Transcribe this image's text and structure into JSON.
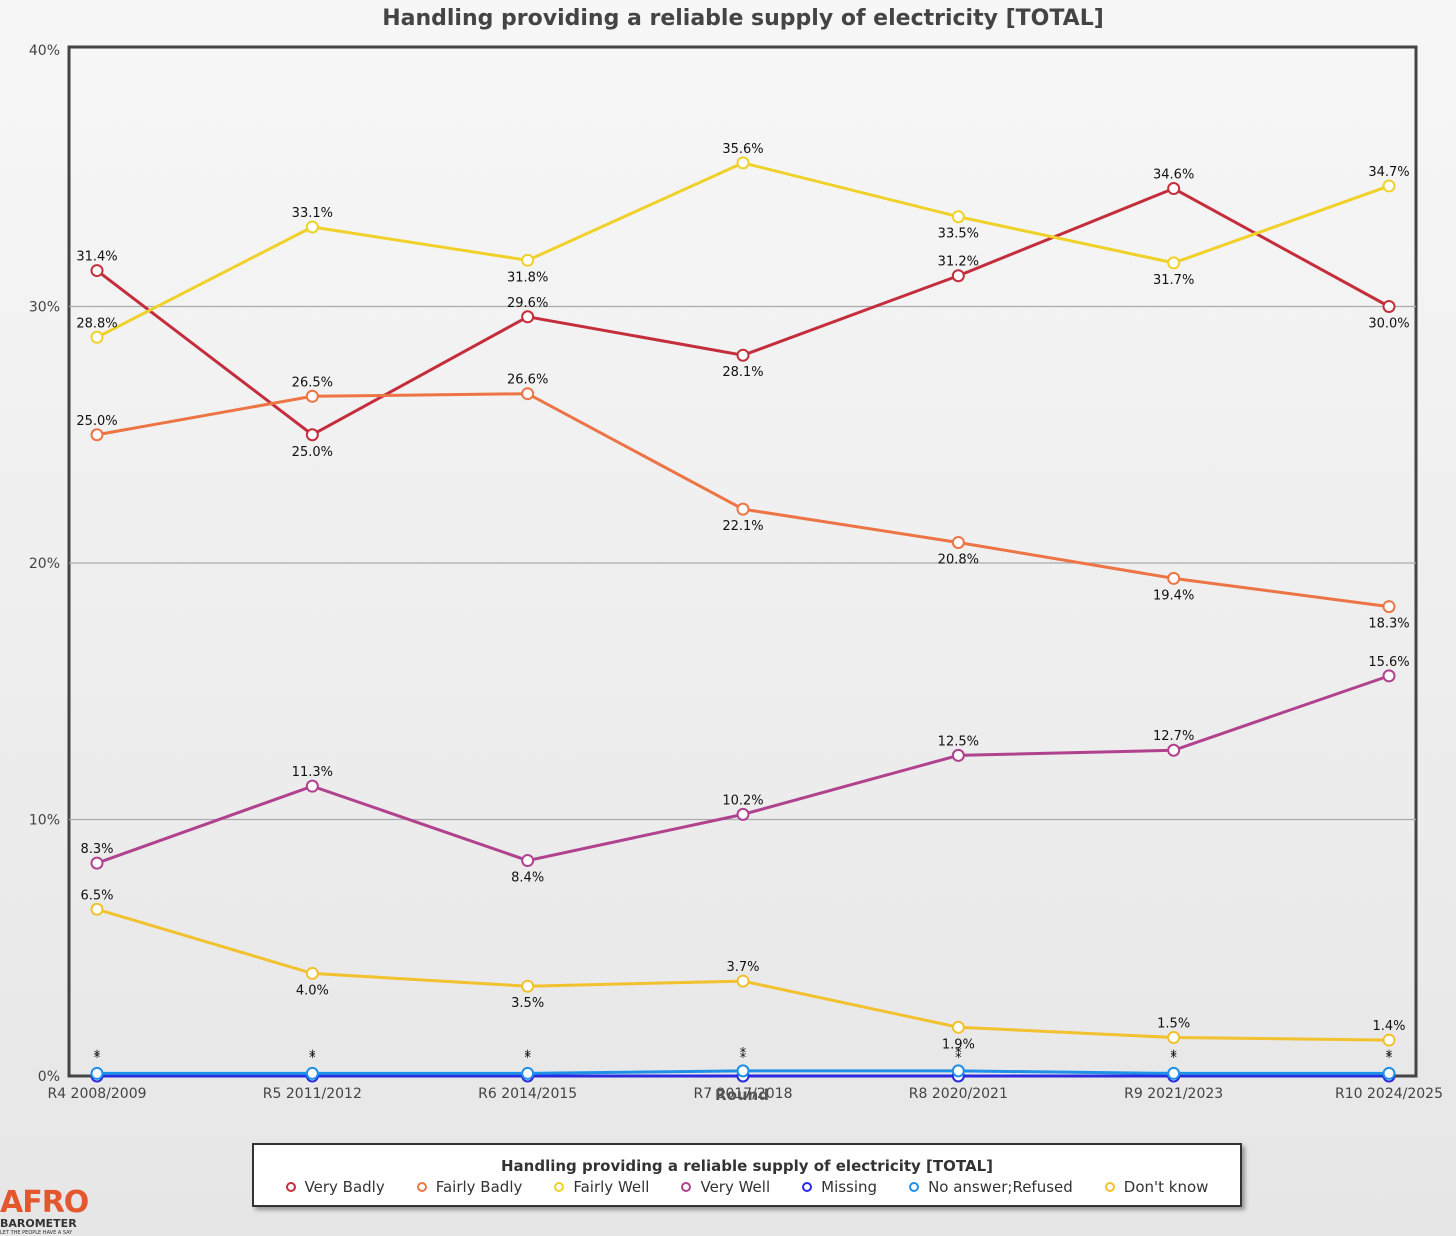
{
  "chart_data": {
    "type": "line",
    "title": "Handling providing a reliable supply of electricity [TOTAL]",
    "xlabel": "Round",
    "ylabel": "",
    "categories": [
      "R4 2008/2009",
      "R5 2011/2012",
      "R6 2014/2015",
      "R7 2017/2018",
      "R8 2020/2021",
      "R9 2021/2023",
      "R10 2024/2025"
    ],
    "ylim": [
      0,
      40
    ],
    "yticks": [
      "0%",
      "10%",
      "20%",
      "30%",
      "40%"
    ],
    "grid": true,
    "legend_position": "bottom",
    "legend_title": "Handling providing a reliable supply of electricity [TOTAL]",
    "series": [
      {
        "name": "Very Badly",
        "color": "#c42e3c",
        "values": [
          31.4,
          25.0,
          29.6,
          28.1,
          31.2,
          34.6,
          30.0
        ],
        "labels": [
          "31.4%",
          "25.0%",
          "29.6%",
          "28.1%",
          "31.2%",
          "34.6%",
          "30.0%"
        ]
      },
      {
        "name": "Fairly Badly",
        "color": "#ed7444",
        "values": [
          25.0,
          26.5,
          26.6,
          22.1,
          20.8,
          19.4,
          18.3
        ],
        "labels": [
          "25.0%",
          "26.5%",
          "26.6%",
          "22.1%",
          "20.8%",
          "19.4%",
          "18.3%"
        ]
      },
      {
        "name": "Fairly Well",
        "color": "#f0d12a",
        "values": [
          28.8,
          33.1,
          31.8,
          35.6,
          33.5,
          31.7,
          34.7
        ],
        "labels": [
          "28.8%",
          "33.1%",
          "31.8%",
          "35.6%",
          "33.5%",
          "31.7%",
          "34.7%"
        ]
      },
      {
        "name": "Very Well",
        "color": "#b0428e",
        "values": [
          8.3,
          11.3,
          8.4,
          10.2,
          12.5,
          12.7,
          15.6
        ],
        "labels": [
          "8.3%",
          "11.3%",
          "8.4%",
          "10.2%",
          "12.5%",
          "12.7%",
          "15.6%"
        ]
      },
      {
        "name": "Missing",
        "color": "#2a2ae0",
        "values": [
          0.0,
          0.0,
          0.0,
          0.0,
          0.0,
          0.0,
          0.0
        ],
        "labels": [
          "*",
          "*",
          "*",
          "*",
          "*",
          "*",
          "*"
        ]
      },
      {
        "name": "No answer;Refused",
        "color": "#1e90e8",
        "values": [
          0.1,
          0.1,
          0.1,
          0.2,
          0.2,
          0.1,
          0.1
        ],
        "labels": [
          "*",
          "*",
          "*",
          "*",
          "*",
          "*",
          "*"
        ]
      },
      {
        "name": "Don't know",
        "color": "#f2c12e",
        "values": [
          6.5,
          4.0,
          3.5,
          3.7,
          1.9,
          1.5,
          1.4
        ],
        "labels": [
          "6.5%",
          "4.0%",
          "3.5%",
          "3.7%",
          "1.9%",
          "1.5%",
          "1.4%"
        ]
      }
    ]
  },
  "logo": {
    "mark": "AFRO",
    "name": "BAROMETER",
    "tagline": "LET THE PEOPLE HAVE A SAY"
  }
}
